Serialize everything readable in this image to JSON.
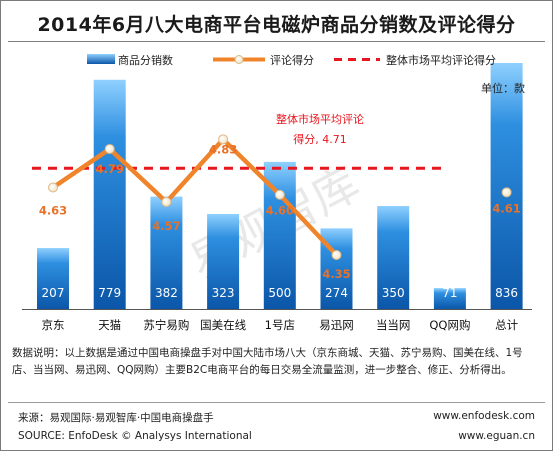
{
  "title": "2014年6月八大电商平台电磁炉商品分销数及评论得分",
  "legend": {
    "sales": "商品分销数",
    "score": "评论得分",
    "average": "整体市场平均评论得分"
  },
  "unit_label": "单位：款",
  "average_annotation": {
    "line1": "整体市场平均评论",
    "line2": "得分, 4.71"
  },
  "watermark": "易观智库",
  "colors": {
    "bar_top": "#8fd0ff",
    "bar_mid": "#2e8fe0",
    "bar_bottom": "#0b56a8",
    "score_line": "#f0842b",
    "score_text": "#e8722a",
    "average_line": "#e8161e"
  },
  "chart_data": {
    "type": "bar",
    "categories": [
      "京东",
      "天猫",
      "苏宁易购",
      "国美在线",
      "1号店",
      "易迅网",
      "当当网",
      "QQ网购",
      "总计"
    ],
    "series": [
      {
        "name": "商品分销数",
        "type": "bar",
        "values": [
          207,
          779,
          382,
          323,
          500,
          274,
          350,
          71,
          836
        ]
      },
      {
        "name": "评论得分",
        "type": "line",
        "values": [
          4.63,
          4.79,
          4.57,
          4.83,
          4.6,
          4.35,
          null,
          null,
          4.61
        ]
      },
      {
        "name": "整体市场平均评论得分",
        "type": "line",
        "values": [
          4.71,
          4.71,
          4.71,
          4.71,
          4.71,
          4.71,
          4.71,
          4.71,
          4.71
        ]
      }
    ],
    "score_labels": [
      "4.63",
      "4.79",
      "4.57",
      "4.83",
      "4.60",
      "4.35",
      "",
      "",
      "4.61"
    ],
    "sales_labels": [
      "207",
      "779",
      "382",
      "323",
      "500",
      "274",
      "350",
      "71",
      "836"
    ],
    "score_line_connected_through": "易迅网",
    "bar_ylim": [
      0,
      900
    ],
    "score_ylim": [
      4.13,
      4.96
    ],
    "average_value": 4.71,
    "legend_position": "top"
  },
  "note": "数据说明：以上数据是通过中国电商操盘手对中国大陆市场八大（京东商城、天猫、苏宁易购、国美在线、1号店、当当网、易迅网、QQ网购）主要B2C电商平台的每日交易全流量监测，进一步整合、修正、分析得出。",
  "footer": {
    "source_cn": "来源：易观国际·易观智库·中国电商操盘手",
    "source_en": "SOURCE: EnfoDesk © Analysys International",
    "url1": "www.enfodesk.com",
    "url2": "www.eguan.cn"
  }
}
